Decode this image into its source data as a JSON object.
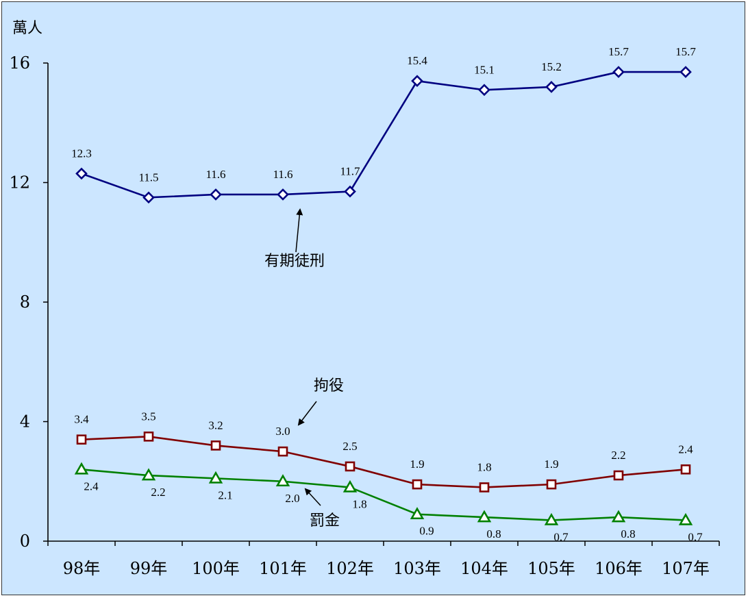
{
  "chart_data": {
    "type": "line",
    "ylabel": "萬人",
    "ylim": [
      0,
      16
    ],
    "yticks": [
      "0",
      "4",
      "8",
      "12",
      "16"
    ],
    "categories": [
      "98年",
      "99年",
      "100年",
      "101年",
      "102年",
      "103年",
      "104年",
      "105年",
      "106年",
      "107年"
    ],
    "grid": false,
    "series": [
      {
        "name": "有期徒刑",
        "color": "#000080",
        "marker": "diamond",
        "values": [
          12.3,
          11.5,
          11.6,
          11.6,
          11.7,
          15.4,
          15.1,
          15.2,
          15.7,
          15.7
        ],
        "labels": [
          "12.3",
          "11.5",
          "11.6",
          "11.6",
          "11.7",
          "15.4",
          "15.1",
          "15.2",
          "15.7",
          "15.7"
        ]
      },
      {
        "name": "拘役",
        "color": "#800000",
        "marker": "square",
        "values": [
          3.4,
          3.5,
          3.2,
          3.0,
          2.5,
          1.9,
          1.8,
          1.9,
          2.2,
          2.4
        ],
        "labels": [
          "3.4",
          "3.5",
          "3.2",
          "3.0",
          "2.5",
          "1.9",
          "1.8",
          "1.9",
          "2.2",
          "2.4"
        ]
      },
      {
        "name": "罰金",
        "color": "#008000",
        "marker": "triangle",
        "values": [
          2.4,
          2.2,
          2.1,
          2.0,
          1.8,
          0.9,
          0.8,
          0.7,
          0.8,
          0.7
        ],
        "labels": [
          "2.4",
          "2.2",
          "2.1",
          "2.0",
          "1.8",
          "0.9",
          "0.8",
          "0.7",
          "0.8",
          "0.7"
        ]
      }
    ]
  }
}
